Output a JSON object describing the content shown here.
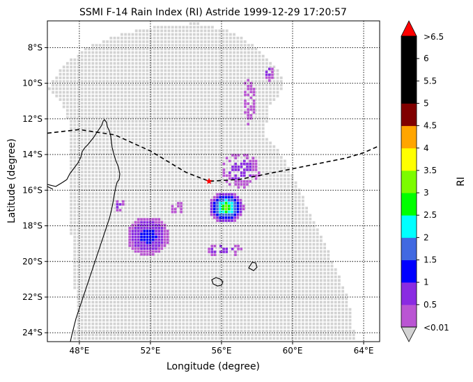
{
  "title": "SSMI F-14 Rain Index (RI) Astride 1999-12-29 17:20:57",
  "xlabel": "Longitude (degree)",
  "ylabel": "Latitude (degree)",
  "colorbar": {
    "label": "RI",
    "under_label": "<0.01",
    "over_label": ">6.5",
    "under_color": "#d3d3d3",
    "over_color": "#ff0000",
    "ticks": [
      "0.5",
      "1",
      "1.5",
      "2",
      "2.5",
      "3",
      "3.5",
      "4",
      "4.5",
      "5",
      "5.5",
      "6"
    ],
    "colors": [
      "#ba55d3",
      "#8a2be2",
      "#0000ff",
      "#4169e1",
      "#00ffff",
      "#00ff00",
      "#7cfc00",
      "#ffff00",
      "#ffa500",
      "#800000",
      "#000000",
      "#000000",
      "#000000"
    ]
  },
  "chart_data": {
    "type": "scatter",
    "title": "SSMI F-14 Rain Index (RI) Astride 1999-12-29 17:20:57",
    "xlabel": "Longitude (degree)",
    "ylabel": "Latitude (degree)",
    "xlim": [
      46.2,
      64.9
    ],
    "ylim": [
      -24.5,
      -6.5
    ],
    "x_ticks": [
      "48°E",
      "52°E",
      "56°E",
      "60°E",
      "64°E"
    ],
    "x_tick_values": [
      48,
      52,
      56,
      60,
      64
    ],
    "y_ticks": [
      "8°S",
      "10°S",
      "12°S",
      "14°S",
      "16°S",
      "18°S",
      "20°S",
      "22°S",
      "24°S"
    ],
    "y_tick_values": [
      -8,
      -10,
      -12,
      -14,
      -16,
      -18,
      -20,
      -22,
      -24
    ],
    "grid": "dotted",
    "swath_color": "#d3d3d3",
    "storm_center": {
      "lon": 55.3,
      "lat": -15.5,
      "color": "#ff0000",
      "marker": "star"
    },
    "track": {
      "style": "dashed",
      "lon": [
        46.2,
        48.0,
        50.0,
        52.0,
        54.0,
        55.3,
        57.0,
        59.0,
        61.0,
        63.0,
        64.0,
        64.9
      ],
      "lat": [
        -12.8,
        -12.6,
        -12.9,
        -13.8,
        -15.0,
        -15.5,
        -15.4,
        -15.0,
        -14.6,
        -14.2,
        -13.9,
        -13.5
      ]
    },
    "rain_clusters": [
      {
        "lon": 56.2,
        "lat": -16.9,
        "rx": 1.0,
        "ry": 0.9,
        "levels": [
          0.3,
          0.8,
          1.3,
          1.8,
          2.3,
          2.8,
          3.3
        ],
        "note_peak": 3.3
      },
      {
        "lon": 57.0,
        "lat": -14.8,
        "rx": 1.1,
        "ry": 1.0,
        "levels": [
          0.3,
          0.8
        ]
      },
      {
        "lon": 51.8,
        "lat": -18.5,
        "rx": 1.2,
        "ry": 1.1,
        "levels": [
          0.3,
          0.8,
          1.3
        ]
      },
      {
        "lon": 56.0,
        "lat": -19.3,
        "rx": 1.1,
        "ry": 0.4,
        "levels": [
          0.3,
          0.8
        ]
      },
      {
        "lon": 58.6,
        "lat": -9.3,
        "rx": 0.3,
        "ry": 0.5,
        "levels": [
          0.3,
          0.8
        ]
      },
      {
        "lon": 57.5,
        "lat": -11.0,
        "rx": 0.4,
        "ry": 1.4,
        "levels": [
          0.3
        ]
      },
      {
        "lon": 50.2,
        "lat": -16.8,
        "rx": 0.3,
        "ry": 0.4,
        "levels": [
          0.3,
          0.8
        ]
      },
      {
        "lon": 53.4,
        "lat": -16.9,
        "rx": 0.4,
        "ry": 0.4,
        "levels": [
          0.3
        ]
      }
    ]
  }
}
